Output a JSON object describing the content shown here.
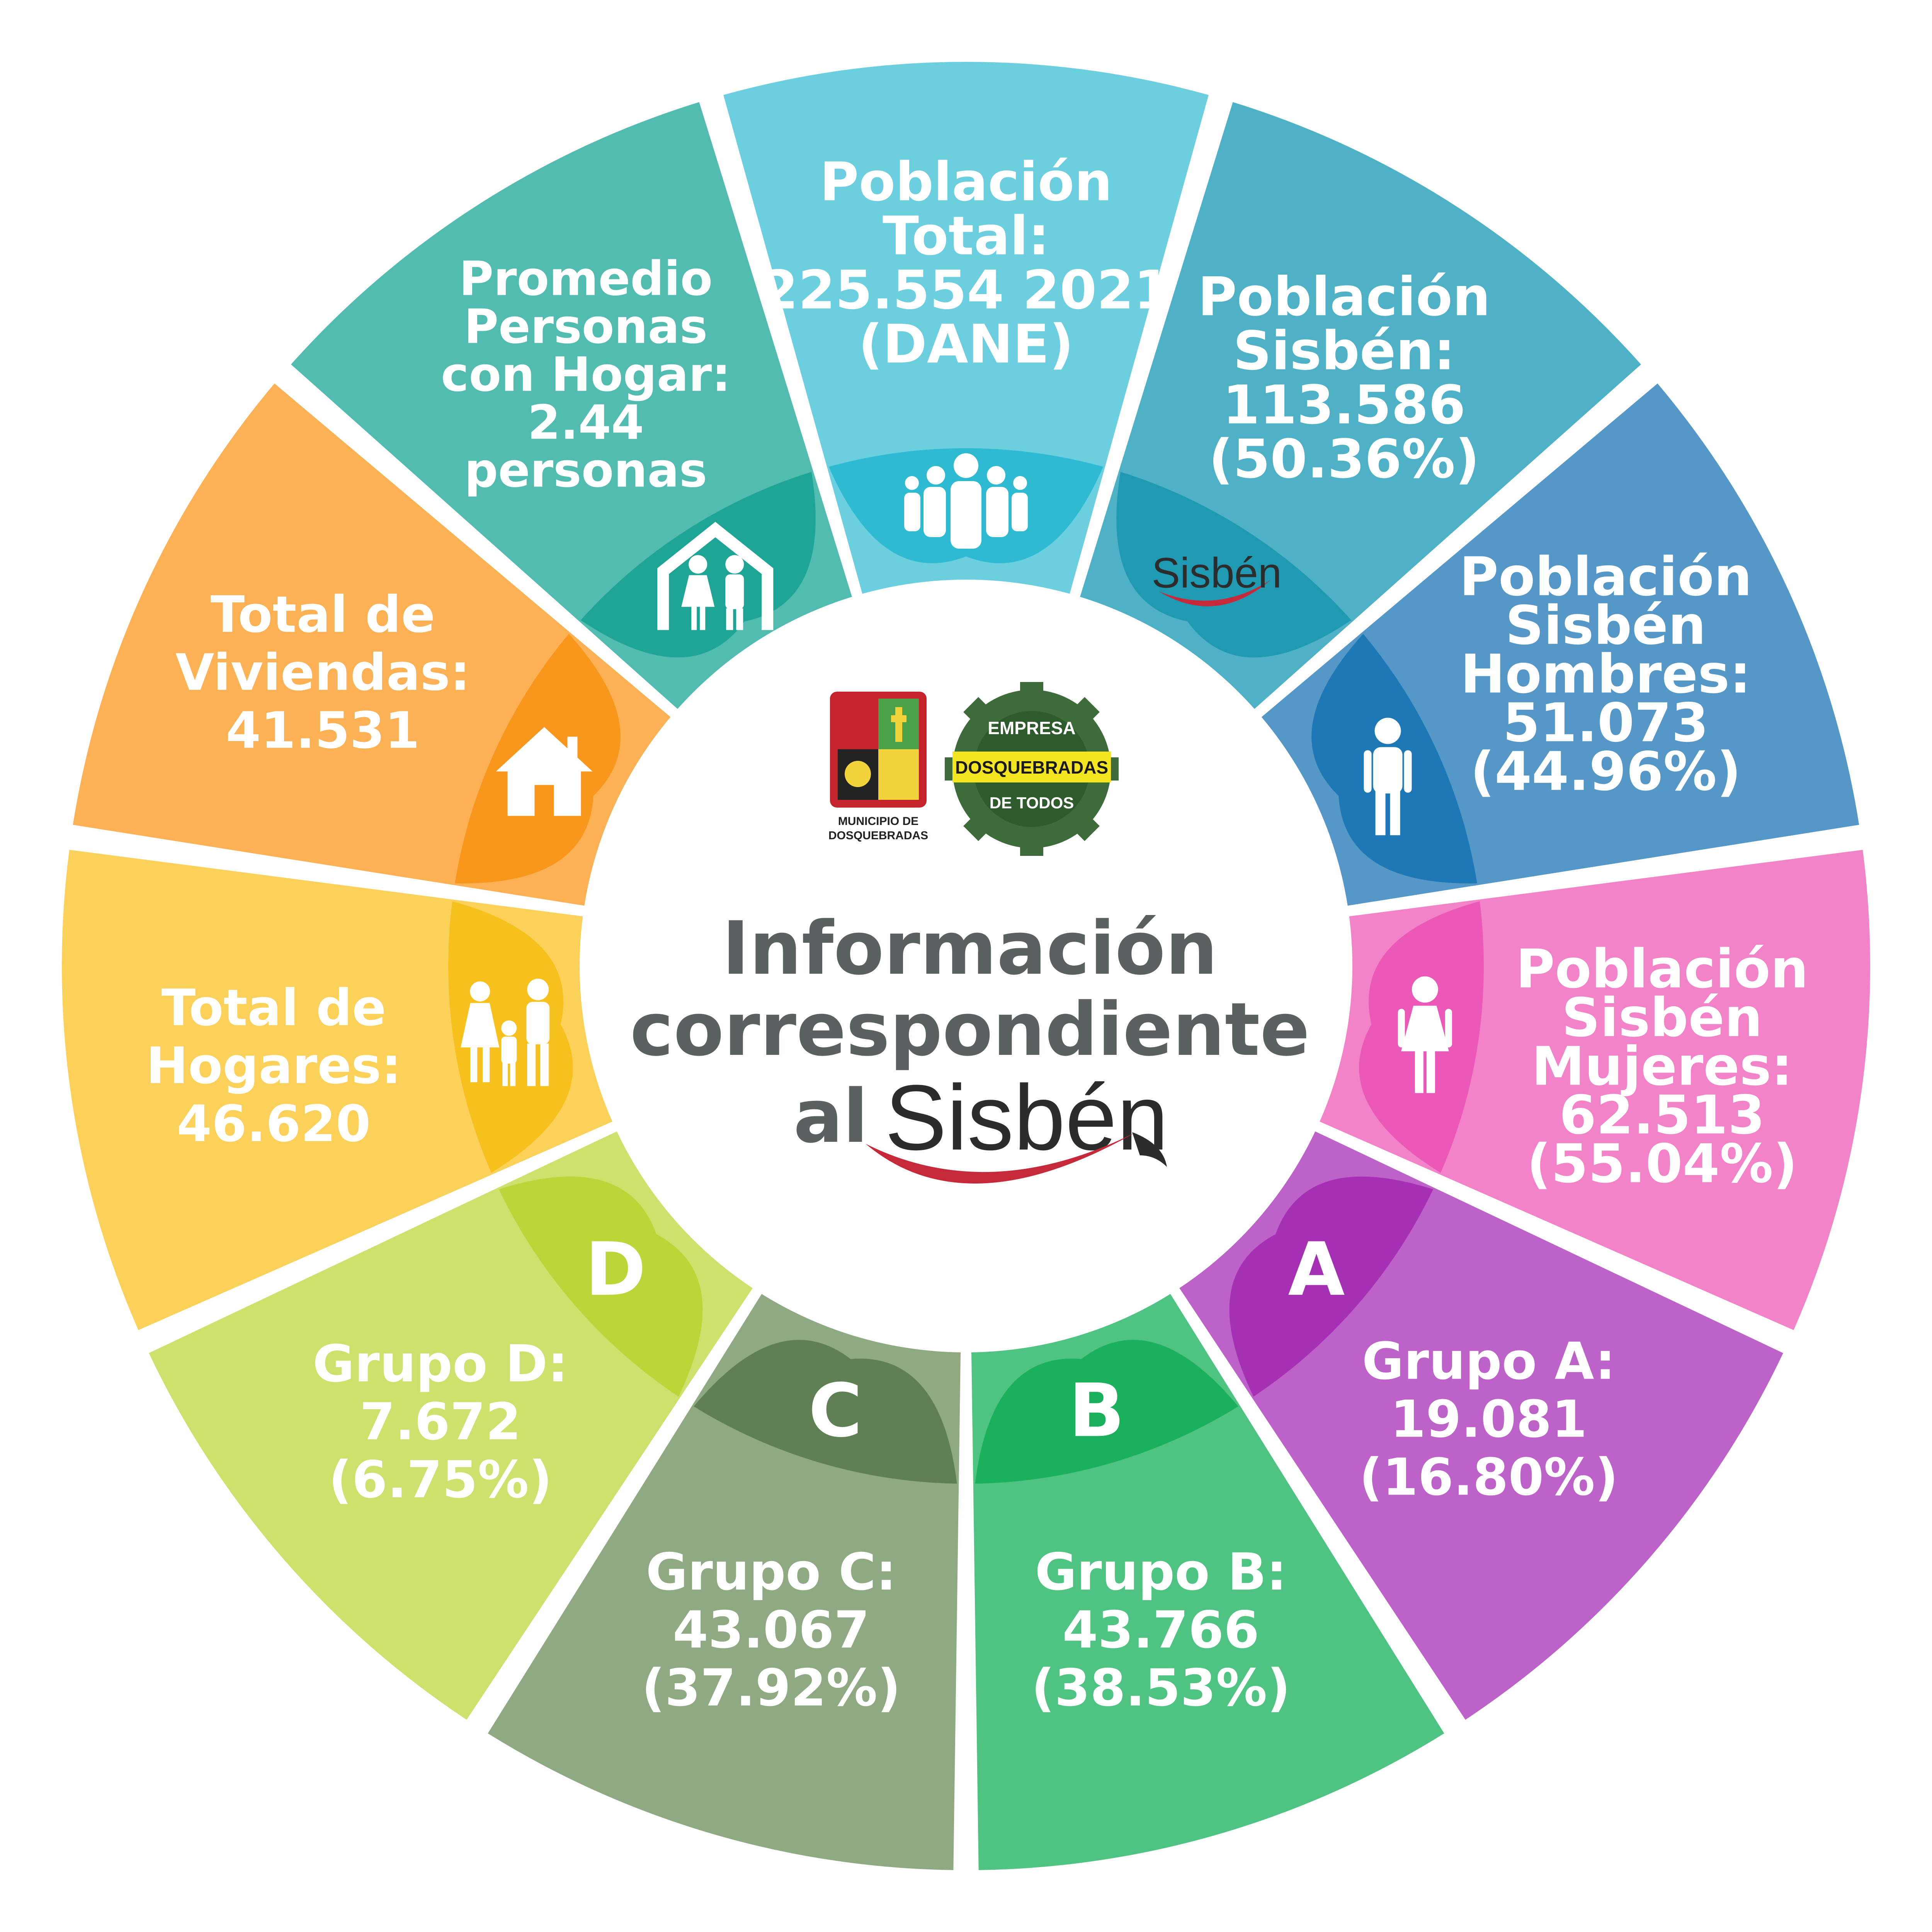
{
  "center": {
    "title_line1": "Información",
    "title_line2": "correspondiente",
    "title_al": "al",
    "title_brand": "Sisbén"
  },
  "logos": {
    "municipio_line1": "MUNICIPIO DE",
    "municipio_line2": "DOSQUEBRADAS",
    "empresa_top": "EMPRESA",
    "empresa_band": "DOSQUEBRADAS",
    "empresa_bottom": "DE TODOS",
    "sisben_badge": "Sisbén"
  },
  "segments": [
    {
      "id": "poblacion-total",
      "color": "#6ccfe0",
      "icon_color": "#2ebbd2",
      "icon": "people-group-icon",
      "lines": [
        "Población",
        "Total:",
        "225.554 2021",
        "(DANE)"
      ]
    },
    {
      "id": "poblacion-sisben",
      "color": "#4fb1c6",
      "icon_color": "#1f9ab2",
      "icon": "sisben-logo-icon",
      "lines": [
        "Población",
        "Sisbén:",
        "113.586",
        "(50.36%)"
      ]
    },
    {
      "id": "sisben-hombres",
      "color": "#5598c7",
      "icon_color": "#1f78b6",
      "icon": "man-icon",
      "lines": [
        "Población",
        "Sisbén",
        "Hombres:",
        "51.073",
        "(44.96%)"
      ]
    },
    {
      "id": "sisben-mujeres",
      "color": "#f283c8",
      "icon_color": "#ec58b7",
      "icon": "woman-icon",
      "lines": [
        "Población",
        "Sisbén",
        "Mujeres:",
        "62.513",
        "(55.04%)"
      ]
    },
    {
      "id": "grupo-a",
      "color": "#bd62c8",
      "icon_color": "#a530b3",
      "icon": "letter-a",
      "letter": "A",
      "lines": [
        "Grupo A:",
        "19.081",
        "(16.80%)"
      ]
    },
    {
      "id": "grupo-b",
      "color": "#4fc381",
      "icon_color": "#1bb05c",
      "icon": "letter-b",
      "letter": "B",
      "lines": [
        "Grupo B:",
        "43.766",
        "(38.53%)"
      ]
    },
    {
      "id": "grupo-c",
      "color": "#8faa83",
      "icon_color": "#5f8055",
      "icon": "letter-c",
      "letter": "C",
      "lines": [
        "Grupo C:",
        "43.067",
        "(37.92%)"
      ]
    },
    {
      "id": "grupo-d",
      "color": "#cde16c",
      "icon_color": "#bcd539",
      "icon": "letter-d",
      "letter": "D",
      "lines": [
        "Grupo D:",
        "7.672",
        "(6.75%)"
      ]
    },
    {
      "id": "total-hogares",
      "color": "#fbd15a",
      "icon_color": "#f7c11d",
      "icon": "family-icon",
      "lines": [
        "Total de",
        "Hogares:",
        "46.620"
      ]
    },
    {
      "id": "total-viviendas",
      "color": "#fbb154",
      "icon_color": "#f9961c",
      "icon": "house-icon",
      "lines": [
        "Total de",
        "Viviendas:",
        "41.531"
      ]
    },
    {
      "id": "promedio-personas",
      "color": "#52bcb0",
      "icon_color": "#1ea596",
      "icon": "home-family-icon",
      "lines": [
        "Promedio",
        "Personas",
        "con Hogar:",
        "2.44",
        "personas"
      ]
    }
  ]
}
